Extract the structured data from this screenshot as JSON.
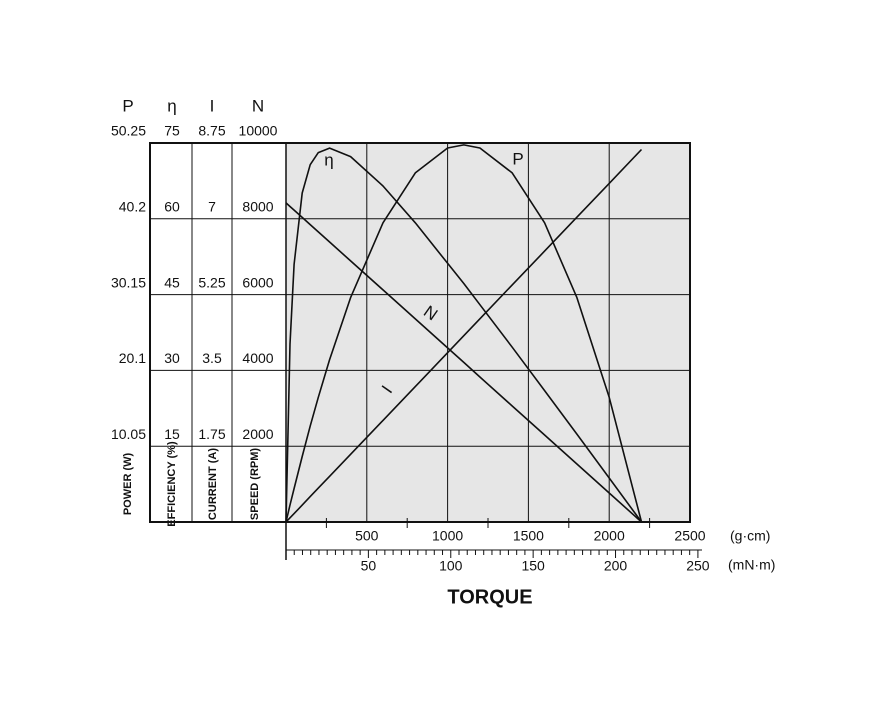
{
  "chart_data": {
    "type": "line",
    "x_title": "TORQUE",
    "x_unit": "(g·cm)",
    "xlim": [
      0,
      2500
    ],
    "xticks": [
      500,
      1000,
      1500,
      2000,
      2500
    ],
    "x_minor_ticks": [
      250,
      750,
      1250,
      1750,
      2250
    ],
    "x2_unit": "(mN·m)",
    "x2lim": [
      0,
      245.2
    ],
    "x2ticks": [
      50,
      100,
      150,
      200,
      250
    ],
    "x2_minor_ticks": [
      5,
      10,
      15,
      20,
      25,
      30,
      35,
      40,
      45,
      55,
      60,
      65,
      70,
      75,
      80,
      85,
      90,
      95,
      105,
      110,
      115,
      120,
      125,
      130,
      135,
      140,
      145,
      155,
      160,
      165,
      170,
      175,
      180,
      185,
      190,
      195,
      205,
      210,
      215,
      220,
      225,
      230,
      235,
      240,
      245
    ],
    "y_axes": [
      {
        "symbol": "P",
        "label": "POWER (W)",
        "ylim": [
          0,
          50.25
        ],
        "yticks": [
          10.05,
          20.1,
          30.15,
          40.2,
          50.25
        ]
      },
      {
        "symbol": "η",
        "label": "EFFICIENCY (%)",
        "ylim": [
          0,
          75
        ],
        "yticks": [
          15,
          30,
          45,
          60,
          75
        ]
      },
      {
        "symbol": "I",
        "label": "CURRENT (A)",
        "ylim": [
          0,
          8.75
        ],
        "yticks": [
          1.75,
          3.5,
          5.25,
          7,
          8.75
        ]
      },
      {
        "symbol": "N",
        "label": "SPEED (RPM)",
        "ylim": [
          0,
          10000
        ],
        "yticks": [
          2000,
          4000,
          6000,
          8000,
          10000
        ]
      }
    ],
    "grid": true,
    "x": [
      0,
      25,
      50,
      100,
      150,
      200,
      270,
      400,
      600,
      800,
      1000,
      1100,
      1200,
      1400,
      1600,
      1800,
      2000,
      2200
    ],
    "series": [
      {
        "name": "η",
        "axis": 1,
        "color": "#111111",
        "values": [
          0,
          35.2,
          51.0,
          65.1,
          70.7,
          73.1,
          74.0,
          72.3,
          66.5,
          59.2,
          51.2,
          47.2,
          43.0,
          34.6,
          26.0,
          17.4,
          8.7,
          0
        ]
      },
      {
        "name": "P",
        "axis": 0,
        "color": "#111111",
        "values": [
          0,
          2.25,
          4.44,
          8.68,
          12.71,
          16.53,
          21.53,
          29.75,
          39.67,
          46.28,
          49.59,
          50,
          49.59,
          46.28,
          39.67,
          29.75,
          16.53,
          0
        ]
      },
      {
        "name": "N",
        "axis": 3,
        "color": "#111111",
        "values": [
          8420,
          8324,
          8229,
          8037,
          7846,
          7655,
          7387,
          6889,
          6124,
          5358,
          4593,
          4210,
          3827,
          3062,
          2296,
          1531,
          766,
          0
        ]
      },
      {
        "name": "I",
        "axis": 2,
        "color": "#111111",
        "values": [
          0,
          0.098,
          0.195,
          0.391,
          0.586,
          0.782,
          1.055,
          1.564,
          2.345,
          3.127,
          3.909,
          4.3,
          4.691,
          5.473,
          6.255,
          7.036,
          7.818,
          8.6
        ]
      }
    ]
  }
}
